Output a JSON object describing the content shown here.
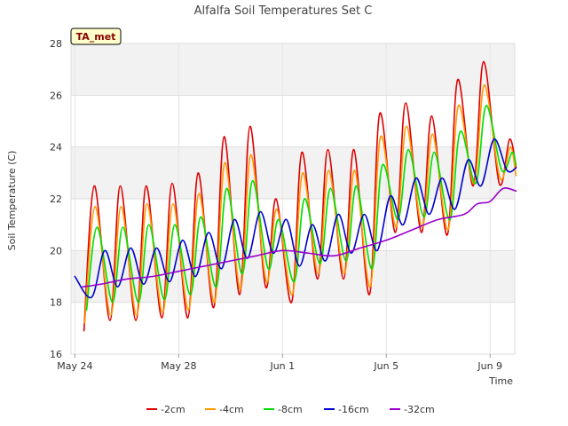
{
  "chart_data": {
    "type": "line",
    "title": "Alfalfa Soil Temperatures Set C",
    "xlabel": "Time",
    "ylabel": "Soil Temperature (C)",
    "badge": "TA_met",
    "ylim": [
      16,
      28
    ],
    "xlim": [
      -0.15,
      16.95
    ],
    "yticks": [
      16,
      18,
      20,
      22,
      24,
      26,
      28
    ],
    "xticks": [
      {
        "day": 0,
        "label": "May 24"
      },
      {
        "day": 4,
        "label": "May 28"
      },
      {
        "day": 8,
        "label": "Jun 1"
      },
      {
        "day": 12,
        "label": "Jun 5"
      },
      {
        "day": 16,
        "label": "Jun 9"
      }
    ],
    "grid": true,
    "banded_background": true,
    "legend_position": "bottom",
    "series": [
      {
        "name": "-2cm",
        "color": "#dd0000",
        "x": [
          0.35,
          0.75,
          1.35,
          1.75,
          2.35,
          2.75,
          3.35,
          3.75,
          4.35,
          4.75,
          5.35,
          5.75,
          6.35,
          6.75,
          7.35,
          7.75,
          8.35,
          8.75,
          9.35,
          9.75,
          10.35,
          10.75,
          11.35,
          11.75,
          12.35,
          12.75,
          13.35,
          13.75,
          14.35,
          14.75,
          15.35,
          15.75,
          16.35,
          16.75,
          17.0
        ],
        "y": [
          16.9,
          22.5,
          17.3,
          22.5,
          17.3,
          22.5,
          17.4,
          22.6,
          17.4,
          23.0,
          17.8,
          24.4,
          18.3,
          24.8,
          18.6,
          22.0,
          18.0,
          23.8,
          18.9,
          23.9,
          18.9,
          23.9,
          18.3,
          25.3,
          20.7,
          25.7,
          20.7,
          25.2,
          20.6,
          26.6,
          22.5,
          27.3,
          22.6,
          24.3,
          23.2
        ]
      },
      {
        "name": "-4cm",
        "color": "#ff9900",
        "x": [
          0.38,
          0.78,
          1.38,
          1.78,
          2.38,
          2.78,
          3.38,
          3.78,
          4.38,
          4.78,
          5.38,
          5.78,
          6.38,
          6.78,
          7.38,
          7.78,
          8.38,
          8.78,
          9.38,
          9.78,
          10.38,
          10.78,
          11.38,
          11.78,
          12.38,
          12.78,
          13.38,
          13.78,
          14.38,
          14.78,
          15.38,
          15.78,
          16.38,
          16.78,
          17.0
        ],
        "y": [
          17.2,
          21.7,
          17.5,
          21.7,
          17.5,
          21.8,
          17.6,
          21.8,
          17.7,
          22.2,
          18.0,
          23.4,
          18.5,
          23.7,
          18.8,
          21.6,
          18.3,
          23.0,
          19.1,
          23.1,
          19.1,
          23.1,
          18.6,
          24.4,
          20.9,
          24.8,
          20.9,
          24.5,
          20.8,
          25.6,
          22.6,
          26.4,
          22.8,
          24.0,
          22.9
        ]
      },
      {
        "name": "-8cm",
        "color": "#00dd00",
        "x": [
          0.45,
          0.85,
          1.45,
          1.85,
          2.45,
          2.85,
          3.45,
          3.85,
          4.45,
          4.85,
          5.45,
          5.85,
          6.45,
          6.85,
          7.45,
          7.85,
          8.45,
          8.85,
          9.45,
          9.85,
          10.45,
          10.85,
          11.45,
          11.85,
          12.45,
          12.85,
          13.45,
          13.85,
          14.45,
          14.85,
          15.45,
          15.85,
          16.45,
          16.85,
          17.0
        ],
        "y": [
          17.7,
          20.9,
          18.0,
          20.9,
          18.0,
          21.0,
          18.1,
          21.0,
          18.3,
          21.3,
          18.6,
          22.4,
          19.1,
          22.7,
          19.3,
          21.2,
          18.8,
          22.0,
          19.5,
          22.4,
          19.6,
          22.5,
          19.3,
          23.3,
          21.2,
          23.9,
          21.3,
          23.8,
          21.2,
          24.6,
          22.6,
          25.6,
          23.1,
          23.8,
          23.3
        ]
      },
      {
        "name": "-16cm",
        "color": "#0000cc",
        "x": [
          0.0,
          0.65,
          1.15,
          1.65,
          2.15,
          2.65,
          3.15,
          3.65,
          4.15,
          4.65,
          5.15,
          5.65,
          6.15,
          6.65,
          7.15,
          7.65,
          8.15,
          8.65,
          9.15,
          9.65,
          10.15,
          10.65,
          11.15,
          11.65,
          12.15,
          12.65,
          13.15,
          13.65,
          14.15,
          14.65,
          15.15,
          15.65,
          16.15,
          16.65,
          17.0
        ],
        "y": [
          19.0,
          18.2,
          20.0,
          18.6,
          20.1,
          18.7,
          20.1,
          18.8,
          20.4,
          19.0,
          20.7,
          19.3,
          21.2,
          19.7,
          21.5,
          19.9,
          21.2,
          19.4,
          21.0,
          19.6,
          21.4,
          19.9,
          21.4,
          20.0,
          22.1,
          21.0,
          22.8,
          21.4,
          22.8,
          21.6,
          23.5,
          22.5,
          24.3,
          23.1,
          23.2
        ]
      },
      {
        "name": "-32cm",
        "color": "#9900cc",
        "x": [
          0.3,
          1.0,
          2.0,
          3.0,
          4.0,
          5.0,
          6.0,
          7.0,
          8.0,
          9.0,
          10.0,
          11.0,
          12.0,
          13.0,
          14.0,
          15.0,
          15.5,
          16.0,
          16.5,
          17.0
        ],
        "y": [
          18.6,
          18.7,
          18.9,
          19.0,
          19.2,
          19.4,
          19.6,
          19.8,
          20.0,
          19.9,
          19.8,
          20.1,
          20.4,
          20.8,
          21.2,
          21.4,
          21.8,
          21.9,
          22.4,
          22.3
        ]
      }
    ]
  }
}
